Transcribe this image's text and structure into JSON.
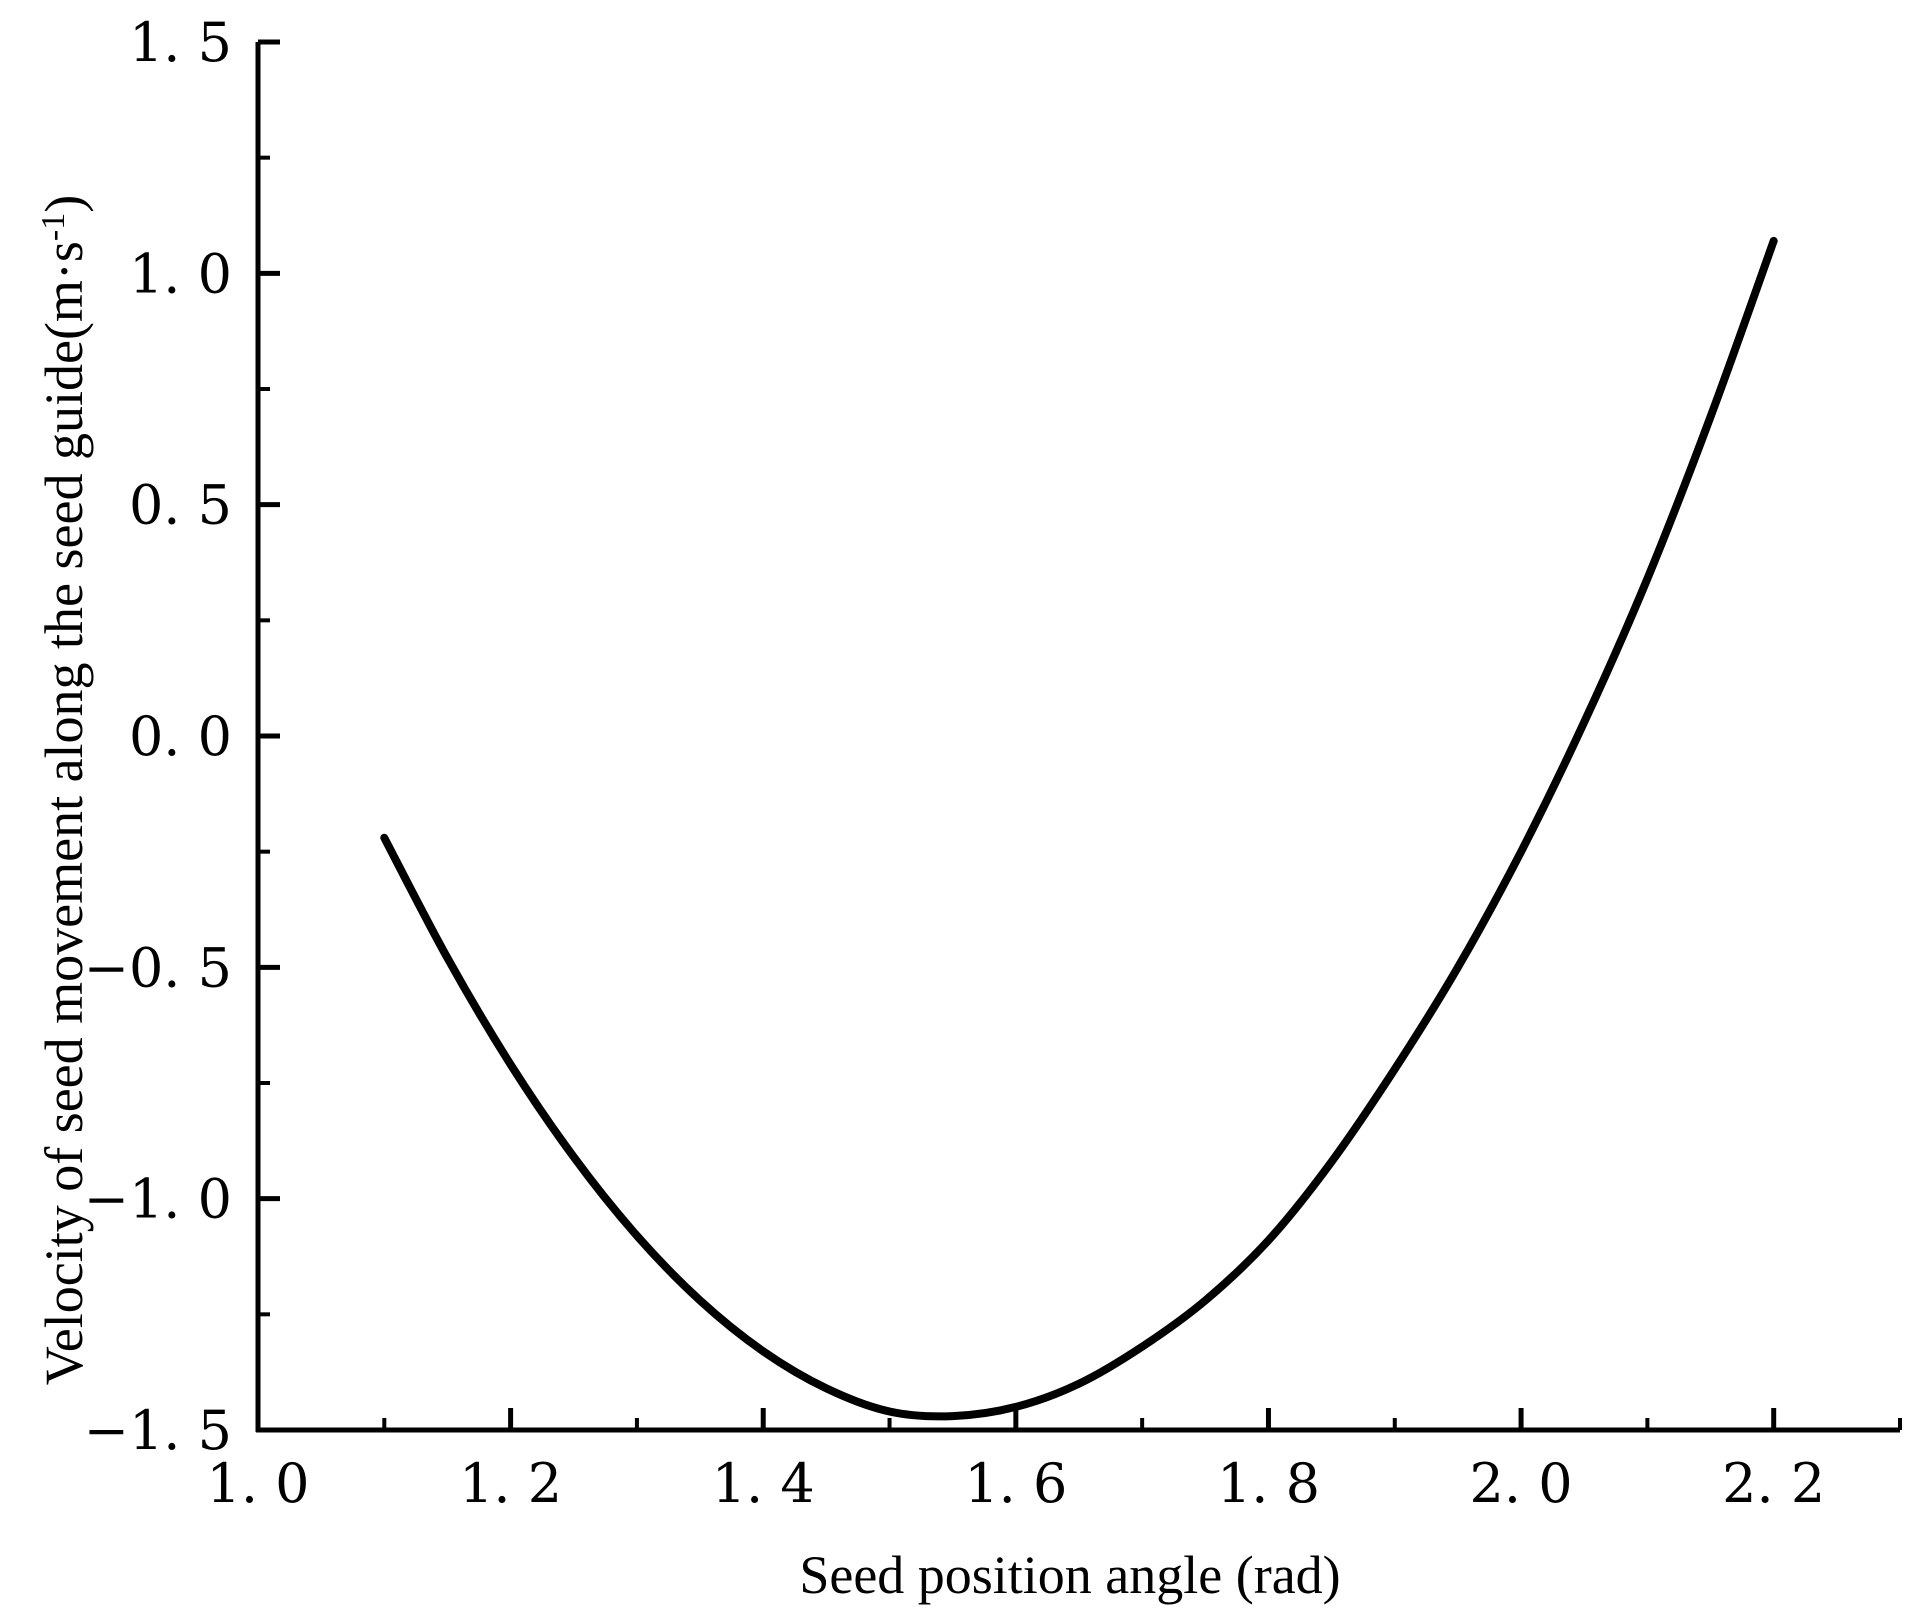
{
  "chart_data": {
    "type": "line",
    "xlabel": "Seed position angle (rad)",
    "ylabel": {
      "main": "Velocity of seed movement along the seed guide(m·s",
      "superscript": "-1",
      "close": ")"
    },
    "xlim": [
      1.0,
      2.3
    ],
    "ylim": [
      -1.5,
      1.5
    ],
    "x_ticks": [
      {
        "value": 1.0,
        "label": "1. 0"
      },
      {
        "value": 1.2,
        "label": "1. 2"
      },
      {
        "value": 1.4,
        "label": "1. 4"
      },
      {
        "value": 1.6,
        "label": "1. 6"
      },
      {
        "value": 1.8,
        "label": "1. 8"
      },
      {
        "value": 2.0,
        "label": "2. 0"
      },
      {
        "value": 2.2,
        "label": "2. 2"
      }
    ],
    "x_minor_ticks": [
      1.1,
      1.3,
      1.5,
      1.7,
      1.9,
      2.1,
      2.3
    ],
    "y_ticks": [
      {
        "value": 1.5,
        "label": "1. 5"
      },
      {
        "value": 1.0,
        "label": "1. 0"
      },
      {
        "value": 0.5,
        "label": "0. 5"
      },
      {
        "value": 0.0,
        "label": "0. 0"
      },
      {
        "value": -0.5,
        "label": "−0. 5"
      },
      {
        "value": -1.0,
        "label": "−1. 0"
      },
      {
        "value": -1.5,
        "label": "−1. 5"
      }
    ],
    "y_minor_ticks": [
      1.25,
      0.75,
      0.25,
      -0.25,
      -0.75,
      -1.25
    ],
    "grid": false,
    "series": [
      {
        "color": "#000000",
        "x": [
          1.1,
          1.15,
          1.2,
          1.25,
          1.3,
          1.35,
          1.4,
          1.45,
          1.5,
          1.55,
          1.6,
          1.65,
          1.7,
          1.75,
          1.8,
          1.85,
          1.9,
          1.95,
          2.0,
          2.05,
          2.1,
          2.15,
          2.2
        ],
        "y": [
          -0.22,
          -0.48,
          -0.71,
          -0.91,
          -1.08,
          -1.22,
          -1.33,
          -1.41,
          -1.46,
          -1.47,
          -1.45,
          -1.4,
          -1.32,
          -1.22,
          -1.09,
          -0.92,
          -0.72,
          -0.5,
          -0.25,
          0.03,
          0.34,
          0.69,
          1.07
        ]
      }
    ]
  }
}
